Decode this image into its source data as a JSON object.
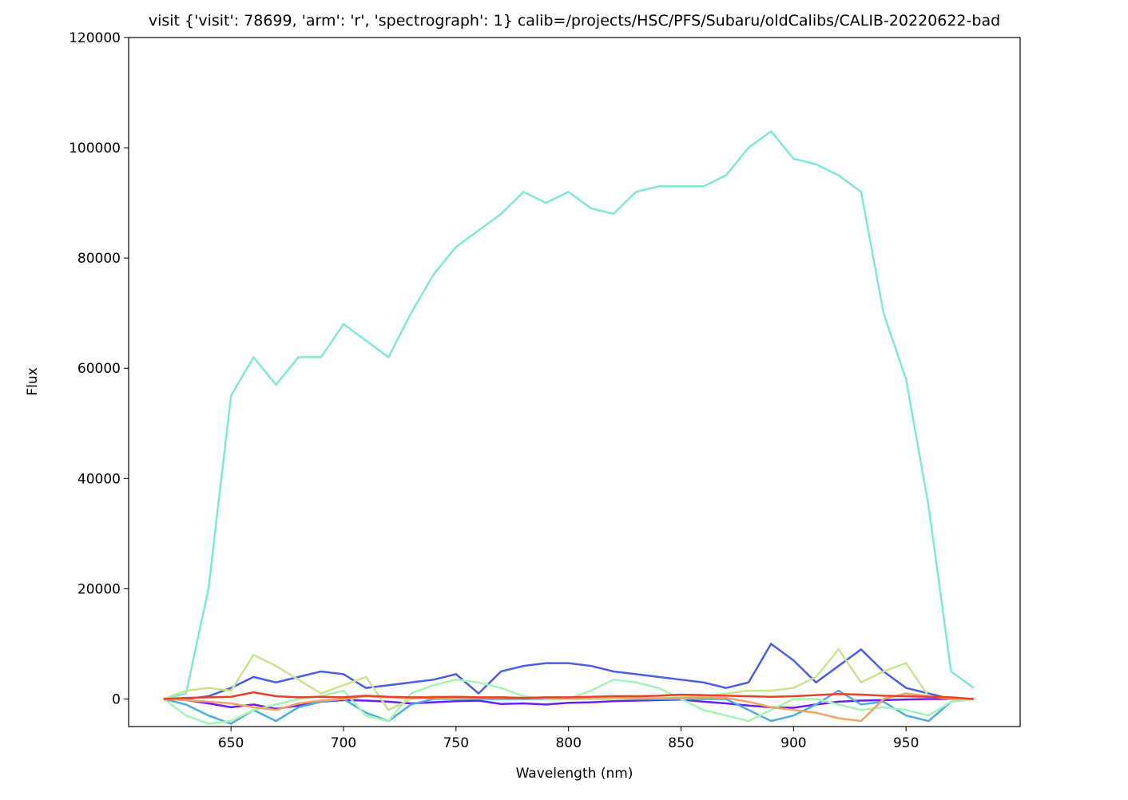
{
  "chart_data": {
    "type": "line",
    "title": "visit {'visit': 78699, 'arm': 'r', 'spectrograph': 1} calib=/projects/HSC/PFS/Subaru/oldCalibs/CALIB-20220622-bad",
    "x_label": "Wavelength (nm)",
    "y_label": "Flux",
    "x": [
      620,
      630,
      640,
      650,
      660,
      670,
      680,
      690,
      700,
      710,
      720,
      730,
      740,
      750,
      760,
      770,
      780,
      790,
      800,
      810,
      820,
      830,
      840,
      850,
      860,
      870,
      880,
      890,
      900,
      910,
      920,
      930,
      940,
      950,
      960,
      970,
      980
    ],
    "series": [
      {
        "color": "#6a1ef0",
        "values": [
          0,
          -200,
          -800,
          -1500,
          -1000,
          -1800,
          -1200,
          -500,
          -200,
          -300,
          -500,
          -800,
          -600,
          -400,
          -300,
          -900,
          -800,
          -1000,
          -700,
          -600,
          -400,
          -300,
          -200,
          -100,
          -500,
          -800,
          -1200,
          -1500,
          -1600,
          -1000,
          -500,
          -300,
          -200,
          -100,
          0,
          0,
          0
        ]
      },
      {
        "color": "#4a5de6",
        "values": [
          0,
          0,
          500,
          2000,
          4000,
          3000,
          4000,
          5000,
          4500,
          2000,
          2500,
          3000,
          3500,
          4500,
          1000,
          5000,
          6000,
          6500,
          6500,
          6000,
          5000,
          4500,
          4000,
          3500,
          3000,
          2000,
          3000,
          10000,
          7000,
          3000,
          6000,
          9000,
          5000,
          2000,
          1000,
          0,
          0
        ]
      },
      {
        "color": "#4aaee0",
        "values": [
          0,
          -1000,
          -3000,
          -4500,
          -2000,
          -4000,
          -1500,
          -500,
          0,
          -2500,
          -4000,
          -1000,
          0,
          0,
          0,
          0,
          0,
          0,
          0,
          0,
          0,
          0,
          0,
          0,
          0,
          0,
          -2000,
          -4000,
          -3000,
          -1000,
          1500,
          -1000,
          -500,
          -3000,
          -4000,
          -500,
          0
        ]
      },
      {
        "color": "#7fe8d4",
        "values": [
          0,
          1000,
          20000,
          55000,
          62000,
          57000,
          62000,
          62000,
          68000,
          65000,
          62000,
          70000,
          77000,
          82000,
          85000,
          88000,
          92000,
          90000,
          92000,
          89000,
          88000,
          92000,
          93000,
          93000,
          93000,
          95000,
          100000,
          103000,
          98000,
          97000,
          95000,
          92000,
          70000,
          58000,
          35000,
          5000,
          2000
        ]
      },
      {
        "color": "#a3f5b4",
        "values": [
          0,
          -3000,
          -4500,
          -4000,
          -2000,
          -1000,
          0,
          500,
          1500,
          -3000,
          -4000,
          1000,
          2500,
          3500,
          3000,
          2000,
          500,
          0,
          0,
          1500,
          3500,
          3000,
          2000,
          0,
          -2000,
          -3000,
          -4000,
          -2000,
          0,
          0,
          -1000,
          -2000,
          -1500,
          -2000,
          -3000,
          -500,
          0
        ]
      },
      {
        "color": "#c6e68e",
        "values": [
          0,
          1500,
          2000,
          1500,
          8000,
          6000,
          3500,
          1000,
          2500,
          4000,
          -2000,
          0,
          500,
          300,
          200,
          300,
          200,
          100,
          0,
          0,
          0,
          100,
          200,
          300,
          400,
          1000,
          1500,
          1500,
          2000,
          4000,
          9000,
          3000,
          5000,
          6500,
          500,
          0,
          0
        ]
      },
      {
        "color": "#f4a460",
        "values": [
          0,
          -200,
          -500,
          -800,
          -1500,
          -2000,
          -800,
          -300,
          0,
          500,
          300,
          200,
          100,
          100,
          200,
          300,
          200,
          100,
          100,
          200,
          300,
          200,
          100,
          200,
          300,
          200,
          -500,
          -1500,
          -2000,
          -2500,
          -3500,
          -4000,
          0,
          1000,
          500,
          0,
          0
        ]
      },
      {
        "color": "#e8412a",
        "values": [
          0,
          200,
          300,
          400,
          1200,
          500,
          300,
          400,
          300,
          600,
          400,
          300,
          300,
          400,
          300,
          300,
          200,
          300,
          300,
          400,
          500,
          500,
          600,
          800,
          700,
          600,
          500,
          400,
          500,
          700,
          900,
          800,
          600,
          500,
          400,
          300,
          0
        ]
      }
    ],
    "xlim": [
      604.5,
      1000.7
    ],
    "ylim": [
      -5000,
      120000
    ],
    "xticks": [
      650,
      700,
      750,
      800,
      850,
      900,
      950
    ],
    "yticks": [
      0,
      20000,
      40000,
      60000,
      80000,
      100000,
      120000
    ]
  }
}
